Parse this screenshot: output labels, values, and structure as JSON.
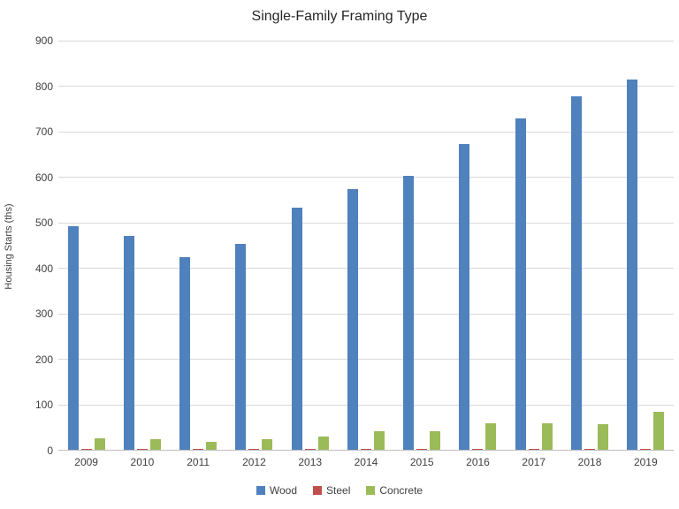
{
  "title": "Single-Family Framing Type",
  "chart_data": {
    "type": "bar",
    "title": "Single-Family Framing Type",
    "xlabel": "",
    "ylabel": "Housing Starts (ths)",
    "ylim": [
      0,
      900
    ],
    "ytick_step": 100,
    "ytick_labels": [
      "0",
      "100",
      "200",
      "300",
      "400",
      "500",
      "600",
      "700",
      "800",
      "900"
    ],
    "grid": true,
    "legend_position": "bottom",
    "categories": [
      "2009",
      "2010",
      "2011",
      "2012",
      "2013",
      "2014",
      "2015",
      "2016",
      "2017",
      "2018",
      "2019"
    ],
    "series": [
      {
        "name": "Wood",
        "color": "#4F81BD",
        "values": [
          493,
          471,
          425,
          453,
          534,
          574,
          604,
          673,
          730,
          778,
          814
        ]
      },
      {
        "name": "Steel",
        "color": "#C0504D",
        "values": [
          4,
          4,
          3,
          3,
          3,
          3,
          3,
          4,
          4,
          4,
          4
        ]
      },
      {
        "name": "Concrete",
        "color": "#9BBB59",
        "values": [
          27,
          25,
          20,
          26,
          31,
          43,
          42,
          61,
          61,
          58,
          86
        ]
      }
    ]
  },
  "colors": {
    "background": "#FFFFFF",
    "gridline": "#D9D9D9",
    "axis_line": "#BFBFBF",
    "tick_text": "#404040",
    "title_text": "#262626"
  }
}
